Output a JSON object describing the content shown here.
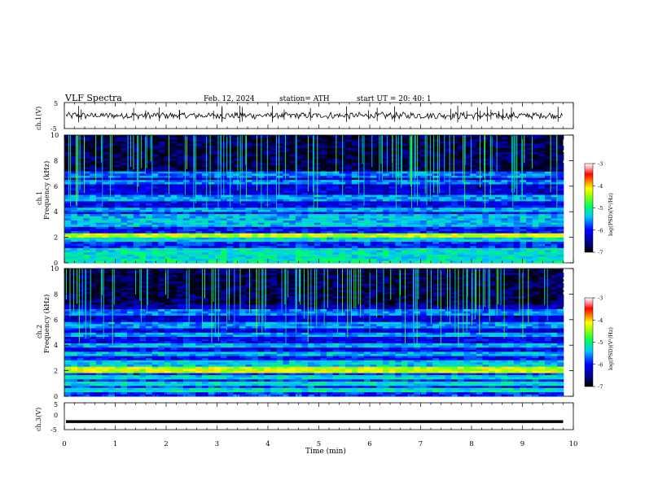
{
  "header": {
    "title": "VLF  Spectra",
    "date": "Feb. 12, 2024",
    "station": "station= ATH",
    "start": "start  UT  =   20: 40: 1"
  },
  "chart_data": [
    {
      "type": "line",
      "name": "ch1-waveform",
      "ylabel": "ch.1(V)",
      "ylim": [
        -5,
        5
      ],
      "yticks": [
        "5",
        "-5"
      ],
      "xlim": [
        0,
        10
      ],
      "baseline": 0,
      "color": "#000000"
    },
    {
      "type": "heatmap",
      "name": "ch1-spectrogram",
      "ylabel_line1": "ch.1",
      "ylabel_line2": "Frequency  (kHz)",
      "ylim": [
        0,
        10
      ],
      "yticks": [
        "0",
        "2",
        "4",
        "6",
        "8",
        "10"
      ],
      "xlim": [
        0,
        10
      ],
      "data_end_min": 9.8,
      "bands_khz": [
        0.2,
        0.55,
        1.0,
        1.8,
        2.15,
        3.1,
        3.6,
        4.2,
        5.1,
        6.3,
        6.9
      ],
      "strong_band_khz": 2.15,
      "colorbar": {
        "label": "log(PSD)(V²/Hz)",
        "ticks": [
          "-3",
          "-4",
          "-5",
          "-6",
          "-7"
        ],
        "range": [
          -7,
          -3
        ]
      }
    },
    {
      "type": "heatmap",
      "name": "ch2-spectrogram",
      "ylabel_line1": "ch.2",
      "ylabel_line2": "Frequency  (kHz)",
      "ylim": [
        0,
        10
      ],
      "yticks": [
        "0",
        "2",
        "4",
        "6",
        "8",
        "10"
      ],
      "xlim": [
        0,
        10
      ],
      "data_end_min": 9.8,
      "bands_khz": [
        0.5,
        1.0,
        1.5,
        2.1,
        2.6,
        3.3,
        4.0,
        4.8,
        5.6,
        6.6
      ],
      "strong_band_khz": 2.1,
      "colorbar": {
        "label": "log(PSD)(V²/Hz)",
        "ticks": [
          "-3",
          "-4",
          "-5",
          "-6",
          "-7"
        ],
        "range": [
          -7,
          -3
        ]
      }
    },
    {
      "type": "line",
      "name": "ch3-waveform",
      "ylabel": "ch.3(V)",
      "ylim": [
        -5,
        5
      ],
      "yticks": [
        "5",
        "0",
        "-5"
      ],
      "xlim": [
        0,
        10
      ],
      "constant_value": -2,
      "color": "#000000"
    }
  ],
  "xaxis": {
    "label": "Time  (min)",
    "ticks": [
      "0",
      "1",
      "2",
      "3",
      "4",
      "5",
      "6",
      "7",
      "8",
      "9",
      "10"
    ]
  }
}
